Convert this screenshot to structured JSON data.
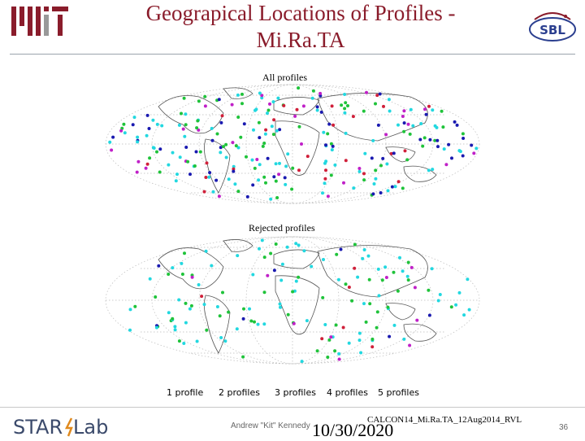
{
  "header": {
    "title_line1": "Geograpical Locations of Profiles -",
    "title_line2": "Mi.Ra.TA",
    "mit_logo": "MIT",
    "sbl_logo": "SBL"
  },
  "maps": [
    {
      "label": "All profiles"
    },
    {
      "label": "Rejected profiles"
    }
  ],
  "legend": [
    {
      "label": "1 profile",
      "color": "#22d8e0"
    },
    {
      "label": "2 profiles",
      "color": "#1fc33a"
    },
    {
      "label": "3 profiles",
      "color": "#1a1ab0"
    },
    {
      "label": "4 profiles",
      "color": "#c020c8"
    },
    {
      "label": "5 profiles",
      "color": "#d0203a"
    }
  ],
  "footer": {
    "logo": "STARLab",
    "author": "Andrew \"Kit\" Kennedy",
    "date": "10/30/2020",
    "reference": "CALCON14_Mi.Ra.TA_12Aug2014_RVL",
    "page": "36"
  },
  "colors": {
    "title": "#8a1c2b",
    "mit_red": "#8a1c2b",
    "sbl_blue": "#2b3f8f"
  }
}
